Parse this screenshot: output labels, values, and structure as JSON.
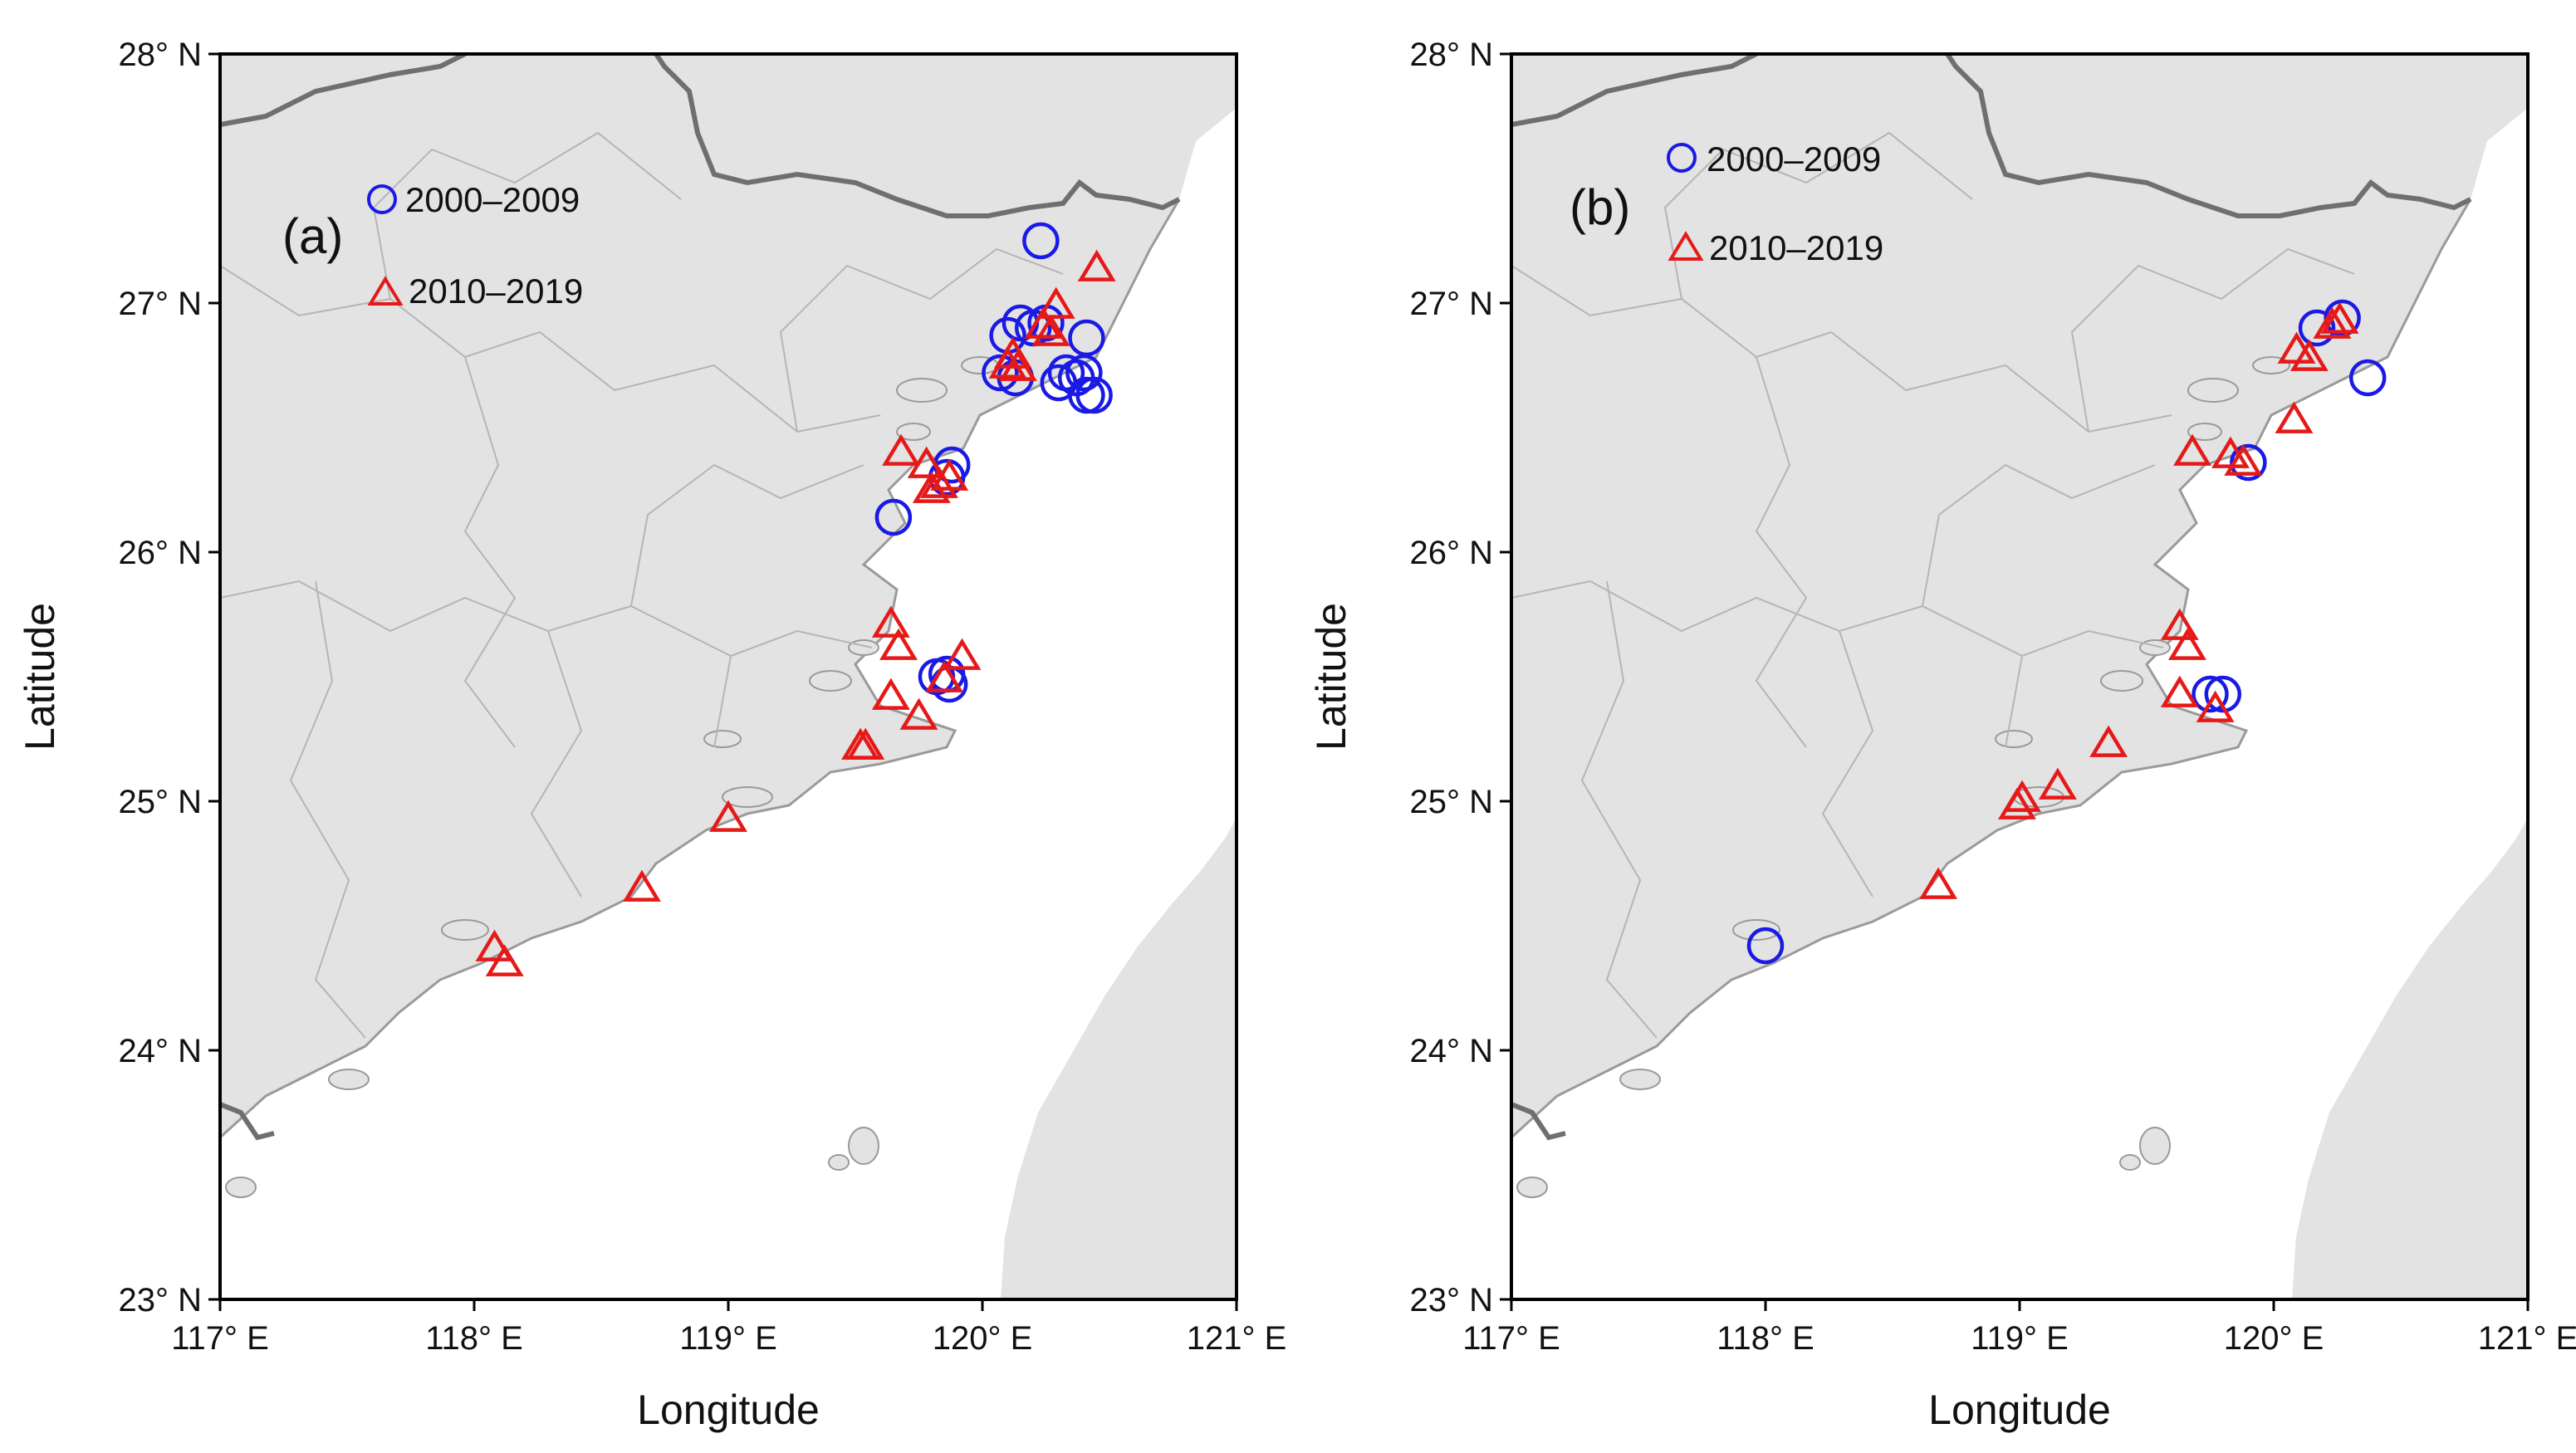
{
  "figure": {
    "colors": {
      "land": "#e3e3e3",
      "sea": "#ffffff",
      "province_border": "#6f6f6f",
      "county_border": "#b5b5b5",
      "coast": "#999999",
      "circle": "#1a1ae6",
      "triangle": "#e61919"
    },
    "x_axis": {
      "title": "Longitude",
      "range": [
        117,
        121
      ],
      "tick_labels": [
        "117° E",
        "118° E",
        "119° E",
        "120° E",
        "121° E"
      ]
    },
    "y_axis": {
      "title": "Latitude",
      "range": [
        23,
        28
      ],
      "tick_labels": [
        "23° N",
        "24° N",
        "25° N",
        "26° N",
        "27° N",
        "28° N"
      ]
    }
  },
  "chart_data": [
    {
      "type": "scatter",
      "panel_label": "(a)",
      "legend": [
        {
          "label": "2000–2009",
          "marker": "circle"
        },
        {
          "label": "2010–2019",
          "marker": "triangle"
        }
      ],
      "series": [
        {
          "name": "2000–2009",
          "marker": "circle",
          "points": [
            [
              120.23,
              27.25
            ],
            [
              120.07,
              26.72
            ],
            [
              120.1,
              26.87
            ],
            [
              120.15,
              26.92
            ],
            [
              120.2,
              26.9
            ],
            [
              120.25,
              26.92
            ],
            [
              120.13,
              26.7
            ],
            [
              120.3,
              26.68
            ],
            [
              120.33,
              26.72
            ],
            [
              120.37,
              26.7
            ],
            [
              120.4,
              26.72
            ],
            [
              120.41,
              26.86
            ],
            [
              120.41,
              26.63
            ],
            [
              120.44,
              26.63
            ],
            [
              119.88,
              26.35
            ],
            [
              119.86,
              26.3
            ],
            [
              119.65,
              26.14
            ],
            [
              119.82,
              25.5
            ],
            [
              119.86,
              25.51
            ],
            [
              119.87,
              25.47
            ]
          ]
        },
        {
          "name": "2010–2019",
          "marker": "triangle",
          "points": [
            [
              120.45,
              27.14
            ],
            [
              120.29,
              26.99
            ],
            [
              120.24,
              26.91
            ],
            [
              120.27,
              26.88
            ],
            [
              120.12,
              26.79
            ],
            [
              120.1,
              26.75
            ],
            [
              120.14,
              26.74
            ],
            [
              119.68,
              26.4
            ],
            [
              119.78,
              26.35
            ],
            [
              119.8,
              26.25
            ],
            [
              119.87,
              26.3
            ],
            [
              119.83,
              26.27
            ],
            [
              119.64,
              25.71
            ],
            [
              119.67,
              25.62
            ],
            [
              119.92,
              25.58
            ],
            [
              119.64,
              25.42
            ],
            [
              119.75,
              25.34
            ],
            [
              119.85,
              25.49
            ],
            [
              119.52,
              25.22
            ],
            [
              119.54,
              25.22
            ],
            [
              119.0,
              24.93
            ],
            [
              118.66,
              24.65
            ],
            [
              118.08,
              24.41
            ],
            [
              118.12,
              24.35
            ]
          ]
        }
      ]
    },
    {
      "type": "scatter",
      "panel_label": "(b)",
      "legend": [
        {
          "label": "2000–2009",
          "marker": "circle"
        },
        {
          "label": "2010–2019",
          "marker": "triangle"
        }
      ],
      "series": [
        {
          "name": "2000–2009",
          "marker": "circle",
          "points": [
            [
              120.17,
              26.9
            ],
            [
              120.27,
              26.94
            ],
            [
              120.37,
              26.7
            ],
            [
              119.9,
              26.36
            ],
            [
              119.75,
              25.43
            ],
            [
              119.8,
              25.43
            ],
            [
              118.0,
              24.42
            ]
          ]
        },
        {
          "name": "2010–2019",
          "marker": "triangle",
          "points": [
            [
              120.23,
              26.91
            ],
            [
              120.26,
              26.93
            ],
            [
              120.09,
              26.81
            ],
            [
              120.14,
              26.78
            ],
            [
              120.08,
              26.53
            ],
            [
              119.68,
              26.4
            ],
            [
              119.83,
              26.39
            ],
            [
              119.88,
              26.36
            ],
            [
              119.63,
              25.7
            ],
            [
              119.66,
              25.62
            ],
            [
              119.63,
              25.43
            ],
            [
              119.77,
              25.37
            ],
            [
              119.35,
              25.23
            ],
            [
              119.15,
              25.06
            ],
            [
              119.01,
              25.01
            ],
            [
              118.99,
              24.98
            ],
            [
              118.68,
              24.66
            ]
          ]
        }
      ]
    }
  ]
}
